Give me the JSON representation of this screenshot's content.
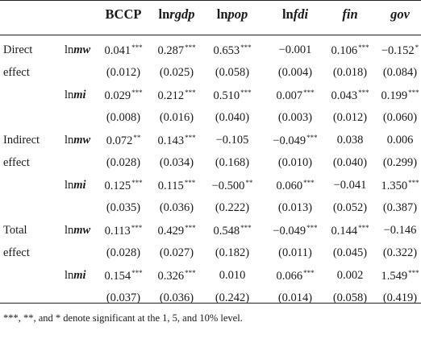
{
  "header": {
    "bccp": "BCCP",
    "lnrgdp_prefix": "ln",
    "lnrgdp_var": "rgdp",
    "lnpop_prefix": "ln",
    "lnpop_var": "pop",
    "lnfdi_prefix": "ln",
    "lnfdi_var": "fdi",
    "fin": "fin",
    "gov": "gov"
  },
  "groups": {
    "direct": [
      "Direct",
      "effect"
    ],
    "indirect": [
      "Indirect",
      "effect"
    ],
    "total": [
      "Total",
      "effect"
    ]
  },
  "var_labels": {
    "mw_prefix": "ln",
    "mw_var": "mw",
    "mi_prefix": "ln",
    "mi_var": "mi"
  },
  "rows": [
    {
      "vals": [
        "0.041",
        "0.287",
        "0.653",
        "−0.001",
        "0.106",
        "−0.152"
      ],
      "stars": [
        "***",
        "***",
        "***",
        "",
        "***",
        "*"
      ]
    },
    {
      "vals": [
        "(0.012)",
        "(0.025)",
        "(0.058)",
        "(0.004)",
        "(0.018)",
        "(0.084)"
      ],
      "stars": [
        "",
        "",
        "",
        "",
        "",
        ""
      ]
    },
    {
      "vals": [
        "0.029",
        "0.212",
        "0.510",
        "0.007",
        "0.043",
        "0.199"
      ],
      "stars": [
        "***",
        "***",
        "***",
        "***",
        "***",
        "***"
      ]
    },
    {
      "vals": [
        "(0.008)",
        "(0.016)",
        "(0.040)",
        "(0.003)",
        "(0.012)",
        "(0.060)"
      ],
      "stars": [
        "",
        "",
        "",
        "",
        "",
        ""
      ]
    },
    {
      "vals": [
        "0.072",
        "0.143",
        "−0.105",
        "−0.049",
        "0.038",
        "0.006"
      ],
      "stars": [
        "**",
        "***",
        "",
        "***",
        "",
        ""
      ]
    },
    {
      "vals": [
        "(0.028)",
        "(0.034)",
        "(0.168)",
        "(0.010)",
        "(0.040)",
        "(0.299)"
      ],
      "stars": [
        "",
        "",
        "",
        "",
        "",
        ""
      ]
    },
    {
      "vals": [
        "0.125",
        "0.115",
        "−0.500",
        "0.060",
        "−0.041",
        "1.350"
      ],
      "stars": [
        "***",
        "***",
        "**",
        "***",
        "",
        "***"
      ]
    },
    {
      "vals": [
        "(0.035)",
        "(0.036)",
        "(0.222)",
        "(0.013)",
        "(0.052)",
        "(0.387)"
      ],
      "stars": [
        "",
        "",
        "",
        "",
        "",
        ""
      ]
    },
    {
      "vals": [
        "0.113",
        "0.429",
        "0.548",
        "−0.049",
        "0.144",
        "−0.146"
      ],
      "stars": [
        "***",
        "***",
        "***",
        "***",
        "***",
        ""
      ]
    },
    {
      "vals": [
        "(0.028)",
        "(0.027)",
        "(0.182)",
        "(0.011)",
        "(0.045)",
        "(0.322)"
      ],
      "stars": [
        "",
        "",
        "",
        "",
        "",
        ""
      ]
    },
    {
      "vals": [
        "0.154",
        "0.326",
        "0.010",
        "0.066",
        "0.002",
        "1.549"
      ],
      "stars": [
        "***",
        "***",
        "",
        "***",
        "",
        "***"
      ]
    },
    {
      "vals": [
        "(0.037)",
        "(0.036)",
        "(0.242)",
        "(0.014)",
        "(0.058)",
        "(0.419)"
      ],
      "stars": [
        "",
        "",
        "",
        "",
        "",
        ""
      ]
    }
  ],
  "footnote": "***, **, and * denote significant at the 1, 5, and 10% level."
}
